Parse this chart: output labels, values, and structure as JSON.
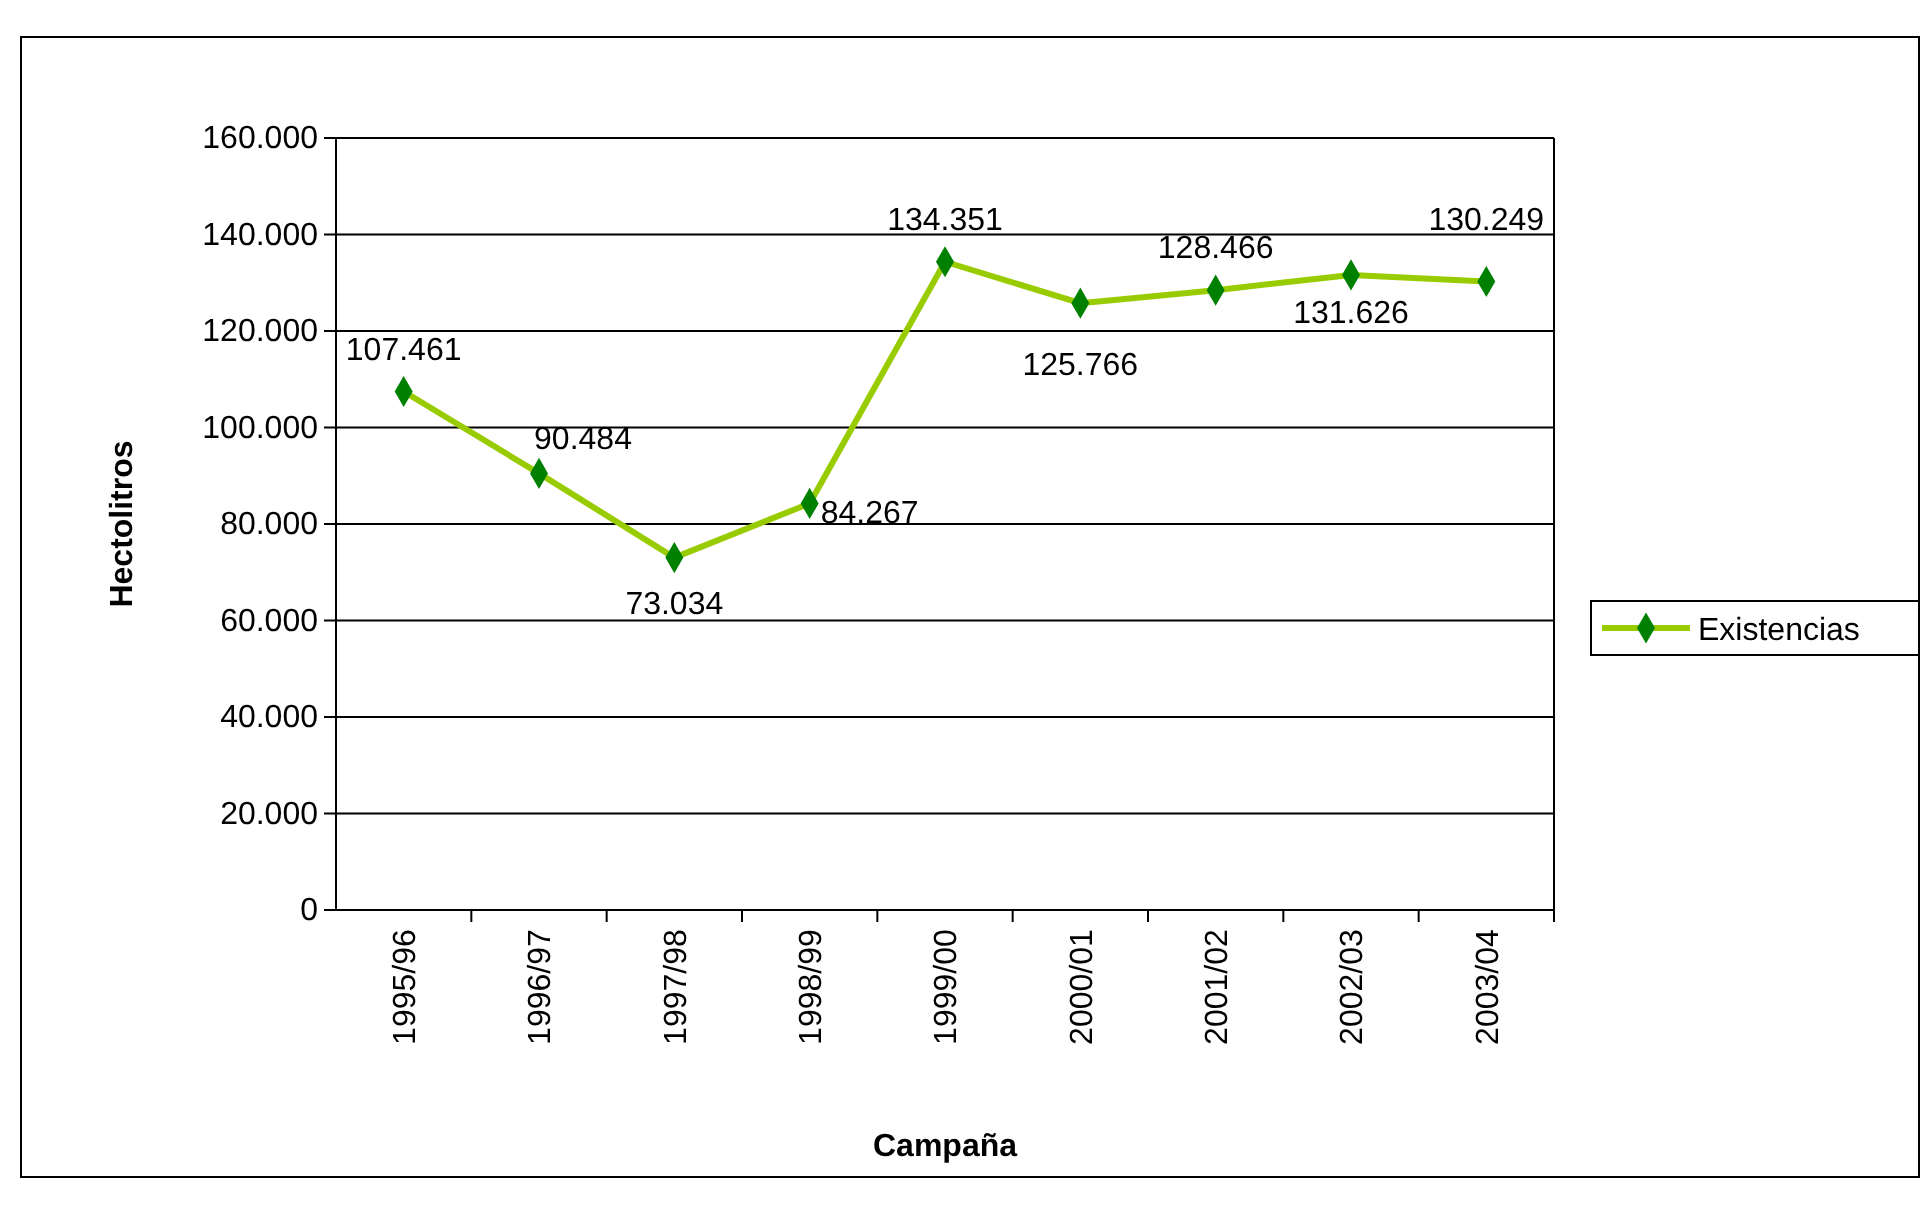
{
  "chart_data": {
    "type": "line",
    "xlabel": "Campaña",
    "ylabel": "Hectolitros",
    "categories": [
      "1995/96",
      "1996/97",
      "1997/98",
      "1998/99",
      "1999/00",
      "2000/01",
      "2001/02",
      "2002/03",
      "2003/04"
    ],
    "series": [
      {
        "name": "Existencias",
        "color": "#99cc00",
        "values": [
          107461,
          90484,
          73034,
          84267,
          134351,
          125766,
          128466,
          131626,
          130249
        ],
        "value_labels": [
          "107.461",
          "90.484",
          "73.034",
          "84.267",
          "134.351",
          "125.766",
          "128.466",
          "131.626",
          "130.249"
        ]
      }
    ],
    "ylim": [
      0,
      160000
    ],
    "yticks": [
      {
        "value": 0,
        "label": "0"
      },
      {
        "value": 20000,
        "label": "20.000"
      },
      {
        "value": 40000,
        "label": "40.000"
      },
      {
        "value": 60000,
        "label": "60.000"
      },
      {
        "value": 80000,
        "label": "80.000"
      },
      {
        "value": 100000,
        "label": "100.000"
      },
      {
        "value": 120000,
        "label": "120.000"
      },
      {
        "value": 140000,
        "label": "140.000"
      },
      {
        "value": 160000,
        "label": "160.000"
      }
    ],
    "grid": "y",
    "legend": "right",
    "marker": "diamond",
    "line_style": "solid"
  }
}
